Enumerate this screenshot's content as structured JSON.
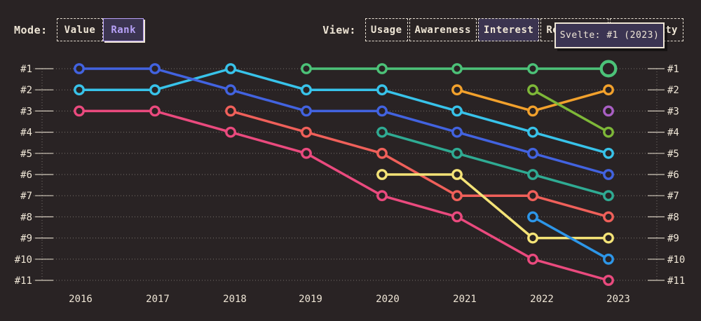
{
  "app": {
    "background": "#292324",
    "text_color": "#efe6d6",
    "accent_purple": "#b7a1f7",
    "panel_fill": "#3b3450"
  },
  "controls": {
    "mode": {
      "label": "Mode:",
      "options": [
        {
          "label": "Value",
          "selected": false
        },
        {
          "label": "Rank",
          "selected": true
        }
      ]
    },
    "view": {
      "label": "View:",
      "options": [
        {
          "label": "Usage",
          "selected": false
        },
        {
          "label": "Awareness",
          "selected": false
        },
        {
          "label": "Interest",
          "selected": true
        },
        {
          "label": "Retention",
          "selected": false,
          "obscured": "fully-by-tooltip"
        },
        {
          "label": "Positivity",
          "selected": false,
          "obscured": "partially-by-tooltip (only 'ty' visible)"
        }
      ]
    }
  },
  "tooltip": {
    "text": "Svelte: #1 (2023)"
  },
  "chart_data": {
    "type": "line",
    "subtype": "bump-chart-of-ranks",
    "title": "",
    "xlabel": "",
    "ylabel": "",
    "x": [
      "2016",
      "2017",
      "2018",
      "2019",
      "2020",
      "2021",
      "2022",
      "2023"
    ],
    "rank_labels": [
      "#1",
      "#2",
      "#3",
      "#4",
      "#5",
      "#6",
      "#7",
      "#8",
      "#9",
      "#10",
      "#11"
    ],
    "ylim": [
      1,
      11
    ],
    "y_axis_sides": "both-left-and-right",
    "grid": "dotted horizontal line per rank; dotted vertical axis lines at both ends; no legend",
    "series": [
      {
        "name": "cyan",
        "color": "#38c3ea",
        "ranks": [
          2,
          2,
          1,
          2,
          2,
          3,
          4,
          5
        ]
      },
      {
        "name": "royal-blue",
        "color": "#4263e0",
        "ranks": [
          1,
          1,
          2,
          3,
          3,
          4,
          5,
          6
        ]
      },
      {
        "name": "pink",
        "color": "#ea4a7e",
        "ranks": [
          3,
          3,
          4,
          5,
          7,
          8,
          10,
          11
        ]
      },
      {
        "name": "salmon",
        "color": "#f0605a",
        "ranks": [
          null,
          null,
          3,
          4,
          5,
          7,
          7,
          8
        ]
      },
      {
        "name": "Svelte",
        "color": "#4cc278",
        "ranks": [
          null,
          null,
          null,
          1,
          1,
          1,
          1,
          1
        ]
      },
      {
        "name": "teal",
        "color": "#2fab93",
        "ranks": [
          null,
          null,
          null,
          null,
          4,
          5,
          6,
          7
        ]
      },
      {
        "name": "yellow",
        "color": "#f4e377",
        "ranks": [
          null,
          null,
          null,
          null,
          6,
          6,
          9,
          9
        ]
      },
      {
        "name": "orange",
        "color": "#f2a12c",
        "ranks": [
          null,
          null,
          null,
          null,
          null,
          2,
          3,
          2
        ]
      },
      {
        "name": "lime",
        "color": "#7eb838",
        "ranks": [
          null,
          null,
          null,
          null,
          null,
          null,
          2,
          4
        ]
      },
      {
        "name": "sky-blue",
        "color": "#2d96e8",
        "ranks": [
          null,
          null,
          null,
          null,
          null,
          null,
          8,
          10
        ]
      },
      {
        "name": "purple",
        "color": "#a95fc4",
        "ranks": [
          null,
          null,
          null,
          null,
          null,
          null,
          null,
          3
        ]
      }
    ],
    "highlight": {
      "series": "Svelte",
      "x": "2023",
      "rank": 1,
      "note": "enlarged hovered marker, matches tooltip"
    }
  }
}
